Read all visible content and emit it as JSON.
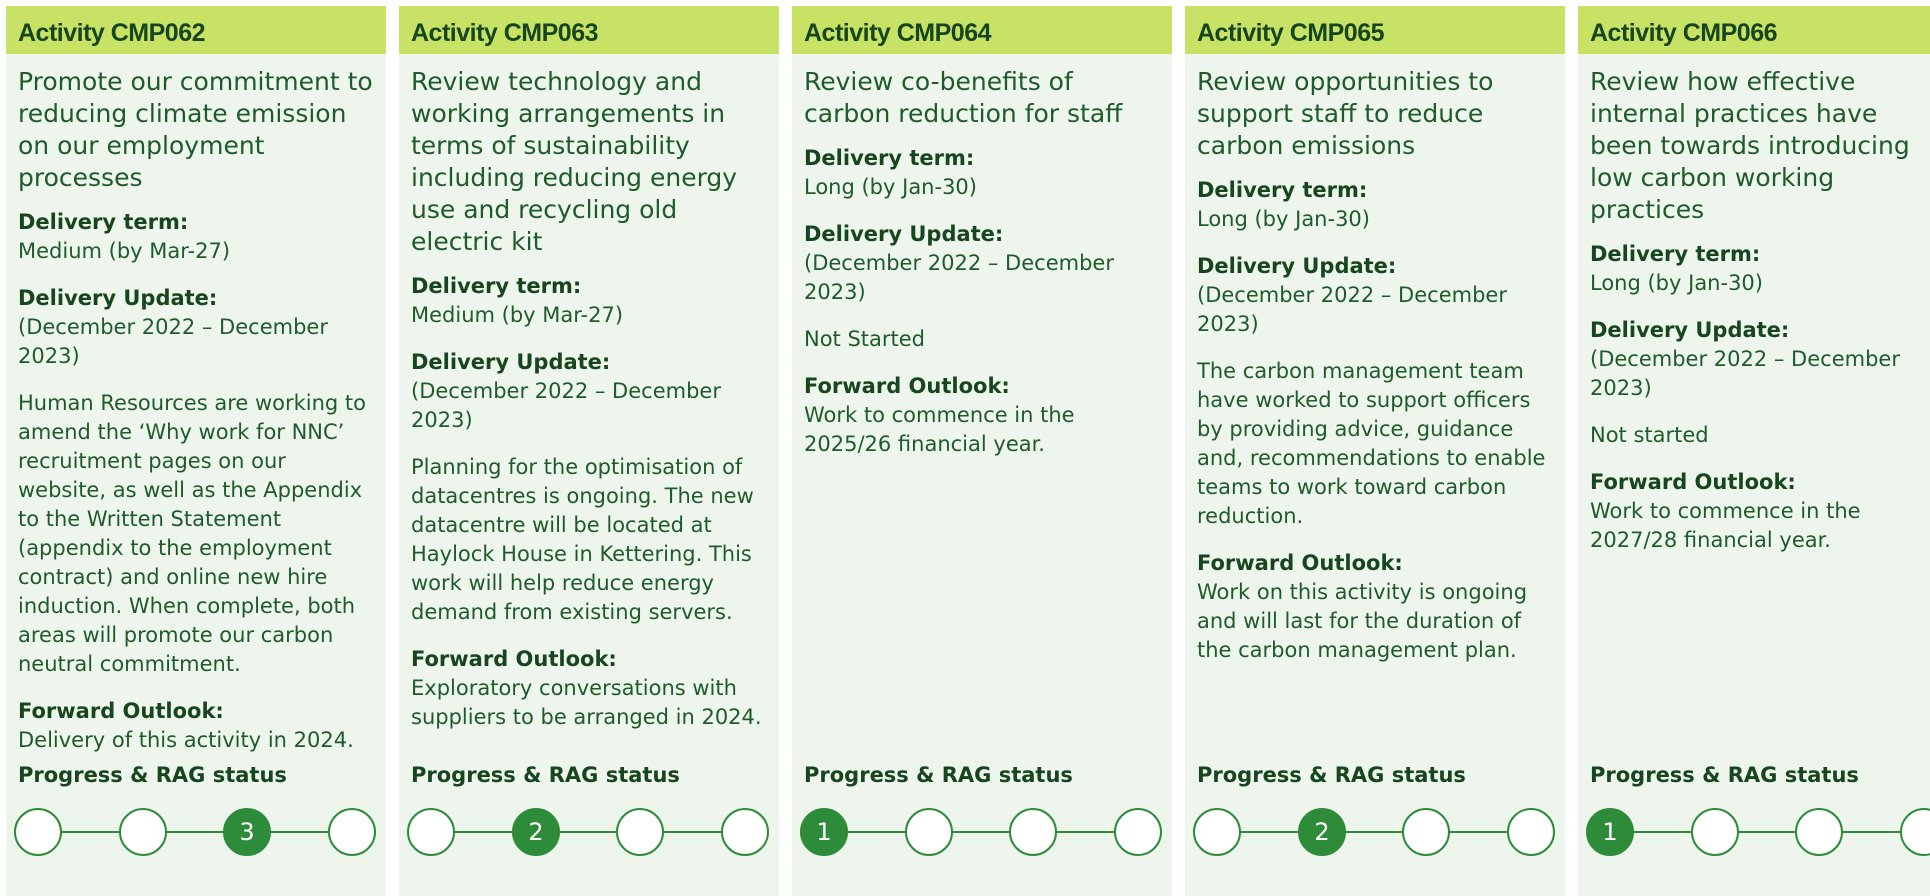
{
  "columns": [
    {
      "title": "Activity CMP062",
      "description": "Promote our commitment to reducing climate emission on our employment processes",
      "term_label": "Delivery term:",
      "term": "Medium (by Mar-27)",
      "update_label": "Delivery Update:",
      "update_period": "(December 2022 – December 2023)",
      "update_text": "Human Resources are working to amend the ‘Why work for NNC’ recruitment pages on our website, as well as the Appendix to the Written Statement (appendix to the employment contract) and online new hire induction. When complete, both areas will promote our carbon neutral commitment.",
      "outlook_label": "Forward Outlook:",
      "outlook": "Delivery of this activity in 2024.",
      "progress_label": "Progress & RAG status",
      "stage": 3
    },
    {
      "title": "Activity CMP063",
      "description": "Review technology and working arrangements in terms of sustainability including reducing energy use and recycling old electric kit",
      "term_label": "Delivery term:",
      "term": "Medium (by Mar-27)",
      "update_label": "Delivery Update:",
      "update_period": "(December 2022 – December 2023)",
      "update_text": "Planning for the optimisation of datacentres is ongoing. The new datacentre will be located at Haylock House in Kettering. This work will help reduce energy demand from existing servers.",
      "outlook_label": "Forward Outlook:",
      "outlook": "Exploratory conversations with suppliers to be arranged in 2024.",
      "progress_label": "Progress & RAG status",
      "stage": 2
    },
    {
      "title": "Activity CMP064",
      "description": "Review co-benefits of carbon reduction for staff",
      "term_label": "Delivery term:",
      "term": "Long (by Jan-30)",
      "update_label": "Delivery Update:",
      "update_period": "(December 2022 – December 2023)",
      "update_text": "Not Started",
      "outlook_label": "Forward Outlook:",
      "outlook": "Work to commence in the 2025/26 financial year.",
      "progress_label": "Progress & RAG status",
      "stage": 1
    },
    {
      "title": "Activity CMP065",
      "description": "Review opportunities to support staff to reduce carbon emissions",
      "term_label": "Delivery term:",
      "term": "Long (by Jan-30)",
      "update_label": "Delivery Update:",
      "update_period": "(December 2022 – December 2023)",
      "update_text": "The carbon management team have worked to support officers by providing advice, guidance and, recommendations to enable teams to work toward carbon reduction.",
      "outlook_label": "Forward Outlook:",
      "outlook": "Work on this activity is ongoing and will last for the duration of the carbon management plan.",
      "progress_label": "Progress & RAG status",
      "stage": 2
    },
    {
      "title": "Activity CMP066",
      "description": "Review how effective internal practices have been towards introducing low carbon working practices",
      "term_label": "Delivery term:",
      "term": "Long (by Jan-30)",
      "update_label": "Delivery Update:",
      "update_period": "(December 2022 – December 2023)",
      "update_text": "Not started",
      "outlook_label": "Forward Outlook:",
      "outlook": "Work to commence in the 2027/28 financial year.",
      "progress_label": "Progress & RAG status",
      "stage": 1
    }
  ]
}
